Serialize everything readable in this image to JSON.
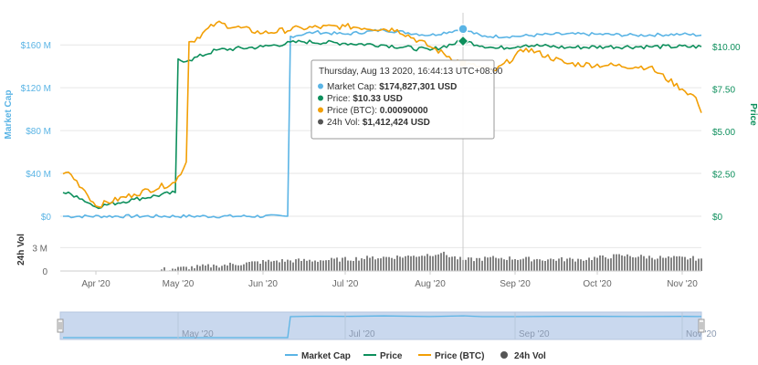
{
  "chart_data": {
    "type": "line",
    "x_ticks": [
      "Apr '20",
      "May '20",
      "Jun '20",
      "Jul '20",
      "Aug '20",
      "Sep '20",
      "Oct '20",
      "Nov '20"
    ],
    "left_axis": {
      "label": "Market Cap",
      "ticks": [
        "$0",
        "$40 M",
        "$80 M",
        "$120 M",
        "$160 M"
      ],
      "ylim": [
        0,
        190000000
      ]
    },
    "right_axis": {
      "label": "Price",
      "ticks": [
        "$0",
        "$2.50",
        "$5.00",
        "$7.50",
        "$10.00"
      ],
      "ylim": [
        0,
        12
      ]
    },
    "volume_axis": {
      "label": "24h Vol",
      "ticks": [
        "0",
        "3 M"
      ],
      "ylim": [
        0,
        5500000
      ]
    },
    "navigator_ticks": [
      "May '20",
      "Jul '20",
      "Sep '20",
      "Nov '20"
    ],
    "series": [
      {
        "name": "Market Cap",
        "color": "#5ab4e5",
        "axis": "left",
        "x": [
          "2020-03-20",
          "2020-06-10",
          "2020-06-11",
          "2020-06-20",
          "2020-07-01",
          "2020-07-15",
          "2020-08-01",
          "2020-08-13",
          "2020-08-20",
          "2020-09-01",
          "2020-09-15",
          "2020-10-01",
          "2020-10-15",
          "2020-11-01",
          "2020-11-08"
        ],
        "values": [
          0,
          0,
          168000000,
          172000000,
          170000000,
          174000000,
          169000000,
          174827301,
          168000000,
          168000000,
          170000000,
          170000000,
          169000000,
          170000000,
          169000000
        ]
      },
      {
        "name": "Price",
        "color": "#0d8f5c",
        "axis": "right",
        "x": [
          "2020-03-20",
          "2020-03-25",
          "2020-04-01",
          "2020-04-15",
          "2020-04-30",
          "2020-05-05",
          "2020-05-15",
          "2020-06-01",
          "2020-06-15",
          "2020-07-01",
          "2020-07-15",
          "2020-08-01",
          "2020-08-13",
          "2020-08-25",
          "2020-09-05",
          "2020-09-20",
          "2020-10-05",
          "2020-10-20",
          "2020-11-08"
        ],
        "values": [
          1.4,
          1.2,
          0.55,
          1.0,
          1.4,
          9.2,
          9.8,
          10.0,
          10.3,
          10.2,
          10.1,
          9.8,
          10.33,
          9.9,
          10.1,
          9.95,
          10.0,
          10.0,
          10.0
        ]
      },
      {
        "name": "Price (BTC)",
        "color": "#f29f05",
        "axis": "right",
        "x": [
          "2020-03-20",
          "2020-03-22",
          "2020-03-28",
          "2020-04-01",
          "2020-04-15",
          "2020-04-30",
          "2020-05-04",
          "2020-05-06",
          "2020-05-15",
          "2020-06-01",
          "2020-06-15",
          "2020-07-01",
          "2020-07-20",
          "2020-08-01",
          "2020-08-13",
          "2020-08-25",
          "2020-09-05",
          "2020-09-20",
          "2020-10-05",
          "2020-10-20",
          "2020-11-01",
          "2020-11-06",
          "2020-11-08"
        ],
        "values": [
          2.5,
          2.6,
          1.5,
          0.6,
          1.3,
          2.0,
          3.2,
          10.3,
          11.4,
          10.8,
          11.1,
          11.2,
          11.0,
          10.0,
          9.0,
          8.6,
          9.9,
          9.0,
          8.9,
          8.8,
          7.5,
          7.0,
          6.1
        ]
      },
      {
        "name": "24h Vol",
        "color": "#777777",
        "axis": "volume",
        "x": [
          "2020-04-25",
          "2020-05-15",
          "2020-06-05",
          "2020-06-25",
          "2020-07-10",
          "2020-07-25",
          "2020-08-05",
          "2020-08-13",
          "2020-08-25",
          "2020-09-10",
          "2020-09-25",
          "2020-10-10",
          "2020-10-25",
          "2020-11-08"
        ],
        "values": [
          200000,
          700000,
          1300000,
          1400000,
          1700000,
          1900000,
          2300000,
          1412424,
          1700000,
          1500000,
          1500000,
          2000000,
          1700000,
          1600000
        ]
      }
    ],
    "tooltip": {
      "date": "Thursday, Aug 13 2020, 16:44:13 UTC+08:00",
      "rows": [
        {
          "label": "Market Cap:",
          "value": "$174,827,301 USD",
          "color": "#5ab4e5"
        },
        {
          "label": "Price:",
          "value": "$10.33 USD",
          "color": "#0d8f5c"
        },
        {
          "label": "Price (BTC):",
          "value": "0.00090000",
          "color": "#f29f05"
        },
        {
          "label": "24h Vol:",
          "value": "$1,412,424 USD",
          "color": "#555555"
        }
      ]
    },
    "legend": [
      {
        "name": "Market Cap",
        "color": "#5ab4e5",
        "marker": "line"
      },
      {
        "name": "Price",
        "color": "#0d8f5c",
        "marker": "line"
      },
      {
        "name": "Price (BTC)",
        "color": "#f29f05",
        "marker": "line"
      },
      {
        "name": "24h Vol",
        "color": "#555555",
        "marker": "circle"
      }
    ],
    "legend_position": "bottom",
    "grid": true
  }
}
